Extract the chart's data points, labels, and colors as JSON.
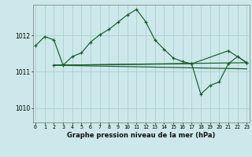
{
  "title": "Graphe pression niveau de la mer (hPa)",
  "bg_color": "#cce8ea",
  "grid_color": "#aacfcf",
  "line_color": "#1a5c2a",
  "x_labels": [
    "0",
    "1",
    "2",
    "3",
    "4",
    "5",
    "6",
    "7",
    "8",
    "9",
    "10",
    "11",
    "12",
    "13",
    "14",
    "15",
    "16",
    "17",
    "18",
    "19",
    "20",
    "21",
    "22",
    "23"
  ],
  "y_ticks": [
    1010,
    1011,
    1012
  ],
  "ylim": [
    1009.6,
    1012.85
  ],
  "xlim": [
    -0.3,
    23.3
  ],
  "series1": [
    1011.72,
    1011.97,
    1011.88,
    1011.18,
    1011.42,
    1011.52,
    1011.82,
    1012.02,
    1012.17,
    1012.37,
    1012.57,
    1012.72,
    1012.38,
    1011.88,
    1011.62,
    1011.38,
    1011.28,
    1011.22,
    1010.38,
    1010.62,
    1010.72,
    1011.22,
    1011.42,
    1011.25
  ],
  "line2_x": [
    2,
    17,
    21,
    23
  ],
  "line2_y": [
    1011.18,
    1011.22,
    1011.58,
    1011.25
  ],
  "line3_x": [
    2,
    23
  ],
  "line3_y": [
    1011.18,
    1011.25
  ],
  "line4_x": [
    2,
    23
  ],
  "line4_y": [
    1011.18,
    1011.08
  ]
}
